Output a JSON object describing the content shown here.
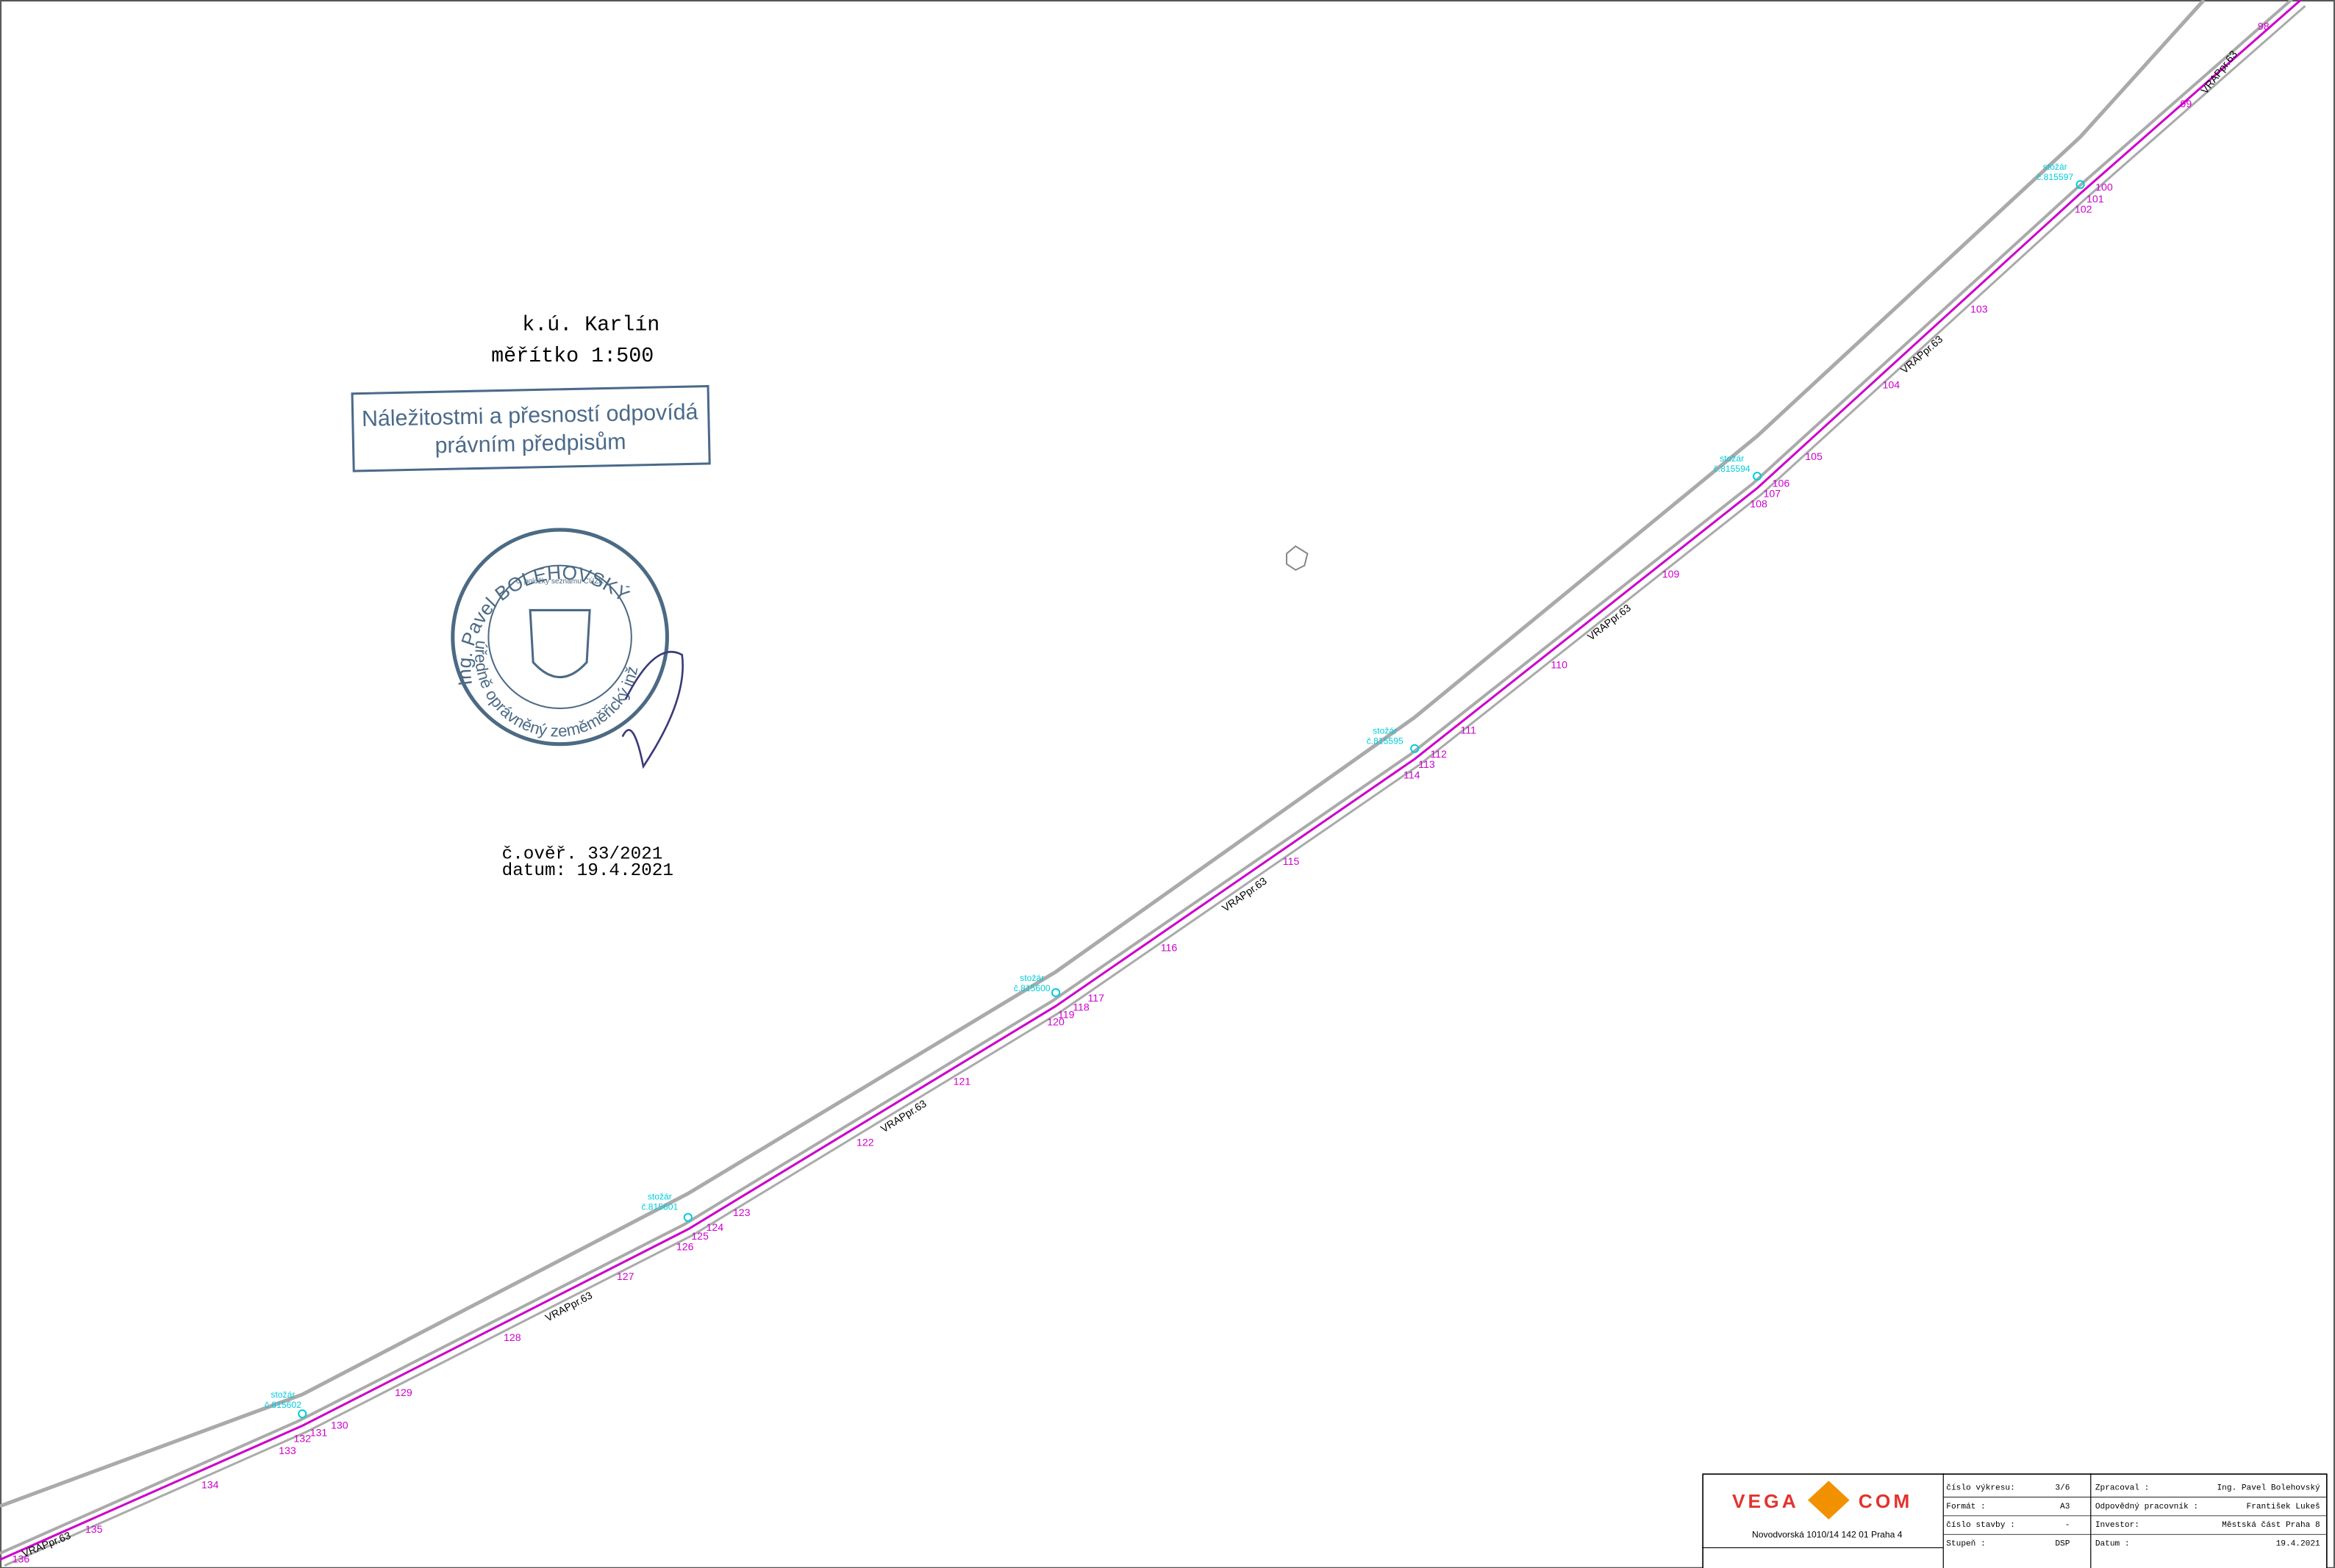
{
  "header": {
    "cadastre": "k.ú. Karlín",
    "scale": "měřítko 1:500"
  },
  "stamp": {
    "line1": "Náležitostmi a přesností odpovídá",
    "line2": "právním předpisům"
  },
  "seal": {
    "name": "Ing. Pavel BOLEHOVSKÝ",
    "role": "úředně oprávněný zeměměřický inženýr",
    "note": "č. položky seznamu ČÚZK"
  },
  "verification": {
    "number": "č.ověř. 33/2021",
    "date": "datum: 19.4.2021"
  },
  "points": [
    "98",
    "99",
    "100",
    "101",
    "102",
    "103",
    "104",
    "105",
    "106",
    "107",
    "108",
    "109",
    "110",
    "111",
    "112",
    "113",
    "114",
    "115",
    "116",
    "117",
    "118",
    "119",
    "120",
    "121",
    "122",
    "123",
    "124",
    "125",
    "126",
    "127",
    "128",
    "129",
    "130",
    "131",
    "132",
    "133",
    "134",
    "135",
    "136"
  ],
  "poles": [
    {
      "kind": "stožár",
      "id": "č.815597"
    },
    {
      "kind": "stožár",
      "id": "č.815594"
    },
    {
      "kind": "stožár",
      "id": "č.815595"
    },
    {
      "kind": "stožár",
      "id": "č.815600"
    },
    {
      "kind": "stožár",
      "id": "č.815601"
    },
    {
      "kind": "stožár",
      "id": "č.815602"
    }
  ],
  "route_labels": [
    "VRAPpr.63",
    "VRAPpr.63",
    "VRAPpr.63",
    "VRAPpr.63",
    "VRAPpr.63",
    "VRAPpr.63",
    "VRAPpr.63"
  ],
  "title_block": {
    "logo_left": "VEGA",
    "logo_right": "COM",
    "address": "Novodvorská 1010/14 142 01 Praha 4",
    "rows": [
      [
        "číslo výkresu:",
        "3/6",
        "Zpracoval :",
        "Ing. Pavel Bolehovský"
      ],
      [
        "Formát :",
        "A3",
        "Odpovědný pracovník :",
        "František Lukeš"
      ],
      [
        "číslo stavby :",
        "-",
        "Investor:",
        "Městská část Praha 8"
      ],
      [
        "Stupeň :",
        "DSP",
        "Datum :",
        "19.4.2021"
      ]
    ]
  }
}
